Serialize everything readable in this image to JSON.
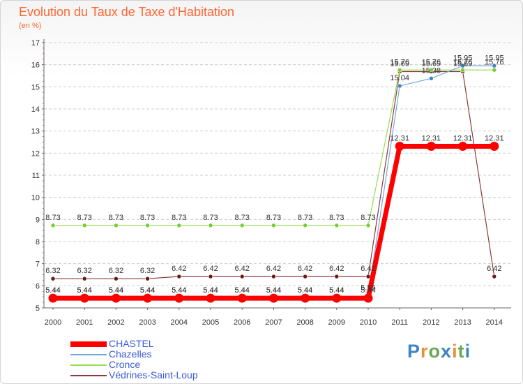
{
  "page": {
    "title": "Evolution du Taux de Taxe d'Habitation",
    "unit": "(en %)",
    "logo": "Proxiti"
  },
  "chart_data": {
    "type": "line",
    "title": "Evolution du Taux de Taxe d'Habitation",
    "ylabel": "(en %)",
    "xlabel": "",
    "x": [
      "2000",
      "2001",
      "2002",
      "2003",
      "2004",
      "2005",
      "2006",
      "2007",
      "2008",
      "2009",
      "2010",
      "2011",
      "2012",
      "2013",
      "2014"
    ],
    "ylim": [
      5,
      17
    ],
    "yticks": [
      5,
      6,
      7,
      8,
      9,
      10,
      11,
      12,
      13,
      14,
      15,
      16,
      17
    ],
    "grid": "horizontal dashed",
    "legend_position": "bottom-left",
    "series": [
      {
        "name": "CHASTEL",
        "color": "#ff0000",
        "marker_color": "#ff0000",
        "values": [
          5.44,
          5.44,
          5.44,
          5.44,
          5.44,
          5.44,
          5.44,
          5.44,
          5.44,
          5.44,
          5.44,
          12.31,
          12.31,
          12.31,
          12.31
        ],
        "labels": [
          "5.44",
          "5.44",
          "5.44",
          "5.44",
          "5.44",
          "5.44",
          "5.44",
          "5.44",
          "5.44",
          "5.44",
          "5.44",
          "12.31",
          "12.31",
          "12.31",
          "12.31"
        ]
      },
      {
        "name": "Chazelles",
        "color": "#6fa8dc",
        "marker_color": "#3d85c6",
        "values": [
          5.44,
          5.44,
          5.44,
          5.44,
          5.44,
          5.44,
          5.44,
          5.44,
          5.44,
          5.44,
          5.55,
          15.04,
          15.38,
          15.95,
          15.95
        ],
        "labels": [
          "5.44",
          "5.44",
          "5.44",
          "5.44",
          "5.44",
          "5.44",
          "5.44",
          "5.44",
          "5.44",
          "5.44",
          "5.55",
          "15.04",
          "15.38",
          "15.95",
          "15.95"
        ]
      },
      {
        "name": "Cronce",
        "color": "#99dd55",
        "marker_color": "#77cc33",
        "values": [
          8.73,
          8.73,
          8.73,
          8.73,
          8.73,
          8.73,
          8.73,
          8.73,
          8.73,
          8.73,
          8.73,
          15.76,
          15.76,
          15.76,
          15.76
        ],
        "labels": [
          "8.73",
          "8.73",
          "8.73",
          "8.73",
          "8.73",
          "8.73",
          "8.73",
          "8.73",
          "8.73",
          "8.73",
          "8.73",
          "15.76",
          "15.76",
          "15.76",
          "15.76"
        ]
      },
      {
        "name": "Védrines-Saint-Loup",
        "color": "#8b3a3a",
        "marker_color": "#6b1a1a",
        "values": [
          6.32,
          6.32,
          6.32,
          6.32,
          6.42,
          6.42,
          6.42,
          6.42,
          6.42,
          6.42,
          6.42,
          15.69,
          15.69,
          15.69,
          6.42
        ],
        "labels": [
          "6.32",
          "6.32",
          "6.32",
          "6.32",
          "6.42",
          "6.42",
          "6.42",
          "6.42",
          "6.42",
          "6.42",
          "6.42",
          "15.69",
          "15.69",
          "15.69",
          "6.42"
        ]
      }
    ]
  }
}
